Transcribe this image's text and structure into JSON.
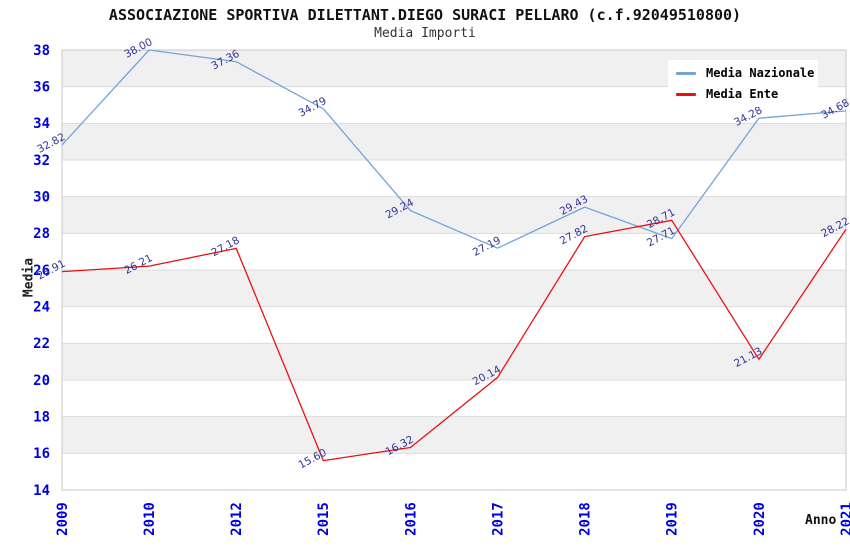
{
  "chart_data": {
    "type": "line",
    "title": "ASSOCIAZIONE SPORTIVA DILETTANT.DIEGO SURACI PELLARO (c.f.92049510800)",
    "subtitle": "Media Importi",
    "xlabel": "Anno",
    "ylabel": "Media",
    "categories": [
      "2009",
      "2010",
      "2012",
      "2015",
      "2016",
      "2017",
      "2018",
      "2019",
      "2020",
      "2021"
    ],
    "series": [
      {
        "name": "Media Nazionale",
        "color": "#73a5d8",
        "values": [
          32.82,
          38.0,
          37.36,
          34.79,
          29.24,
          27.19,
          29.43,
          27.71,
          34.28,
          34.68
        ]
      },
      {
        "name": "Media Ente",
        "color": "#ea1010",
        "values": [
          25.91,
          26.21,
          27.18,
          15.6,
          16.32,
          20.14,
          27.82,
          28.71,
          21.13,
          28.22
        ]
      }
    ],
    "ylim": [
      14,
      38
    ],
    "ytick_step": 2,
    "grid": true,
    "legend_position": "top-right",
    "colors": {
      "band": "#f0f0f0",
      "gridline": "#dcdcdc",
      "plot_border": "#c9c9c9",
      "tick_label": "#0000dd",
      "value_label": "#333399"
    }
  }
}
